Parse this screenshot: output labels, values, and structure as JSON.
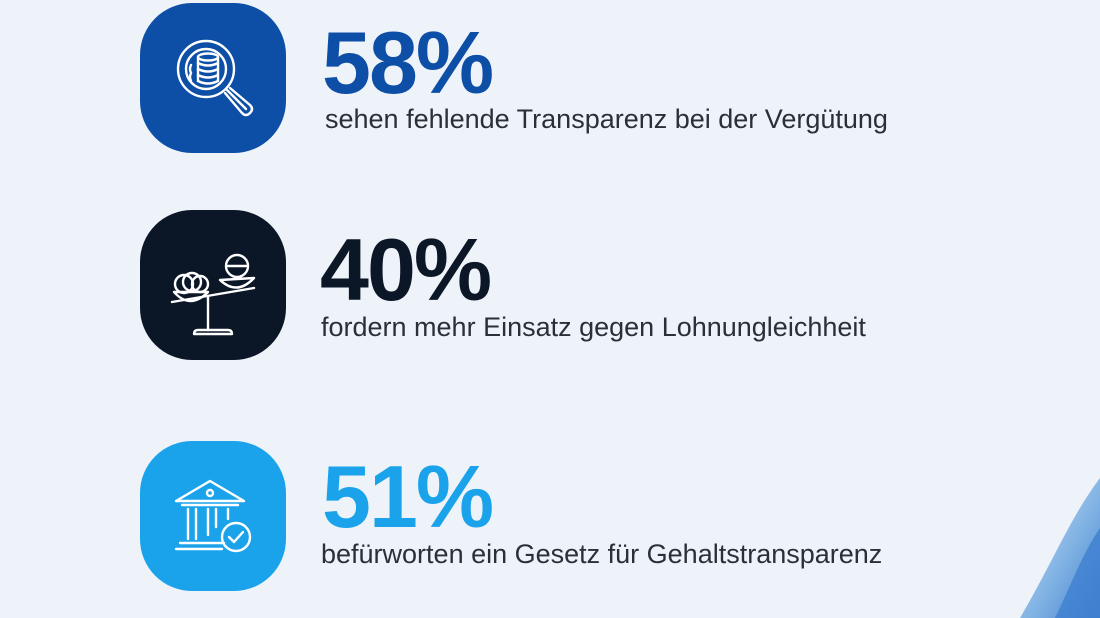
{
  "colors": {
    "background": "#eef2f9",
    "blue_dark": "#0d4ea6",
    "navy": "#0b1626",
    "blue_light": "#1aa3ea",
    "text": "#2b2f38"
  },
  "stats": [
    {
      "value": "58%",
      "text": "sehen fehlende Transparenz bei der Vergütung",
      "icon": "magnifier-coins-icon",
      "color": "#0d4ea6"
    },
    {
      "value": "40%",
      "text": "fordern mehr Einsatz gegen Lohnungleichheit",
      "icon": "scale-coins-icon",
      "color": "#0b1626"
    },
    {
      "value": "51%",
      "text": "befürworten ein Gesetz für Gehaltstransparenz",
      "icon": "institution-check-icon",
      "color": "#1aa3ea"
    }
  ]
}
